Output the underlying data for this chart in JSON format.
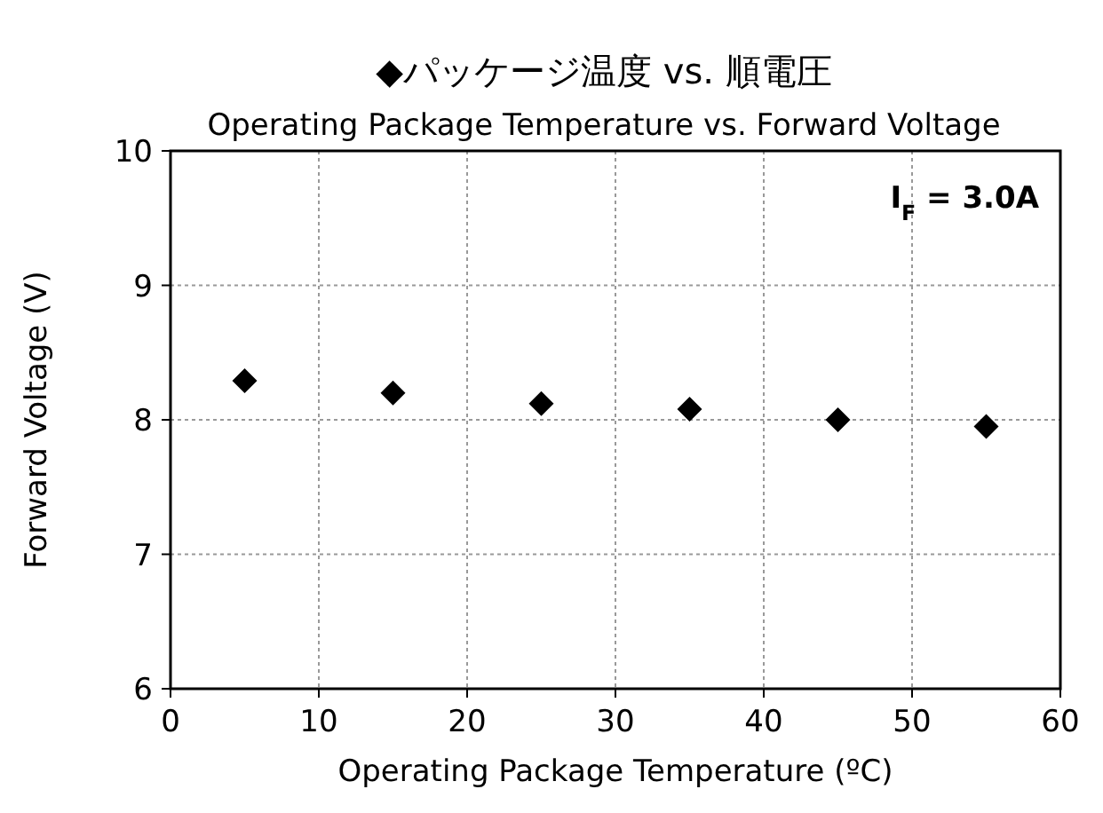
{
  "chart_data": {
    "type": "scatter",
    "title": "◆パッケージ温度 vs. 順電圧",
    "subtitle": "Operating Package Temperature vs. Forward Voltage",
    "xlabel": "Operating Package Temperature (ºC)",
    "ylabel": "Forward Voltage (V)",
    "x": [
      5,
      15,
      25,
      35,
      45,
      55
    ],
    "series": [
      {
        "color": "#000000",
        "values": [
          8.29,
          8.2,
          8.12,
          8.08,
          8.0,
          7.95
        ]
      }
    ],
    "xlim": [
      0,
      60
    ],
    "xticks": [
      0,
      10,
      20,
      30,
      40,
      50,
      60
    ],
    "ylim": [
      6,
      10
    ],
    "yticks": [
      6,
      7,
      8,
      9,
      10
    ],
    "grid": true,
    "marker": "diamond",
    "annotations": [
      "I$_{F}$ = 3.0A"
    ]
  }
}
